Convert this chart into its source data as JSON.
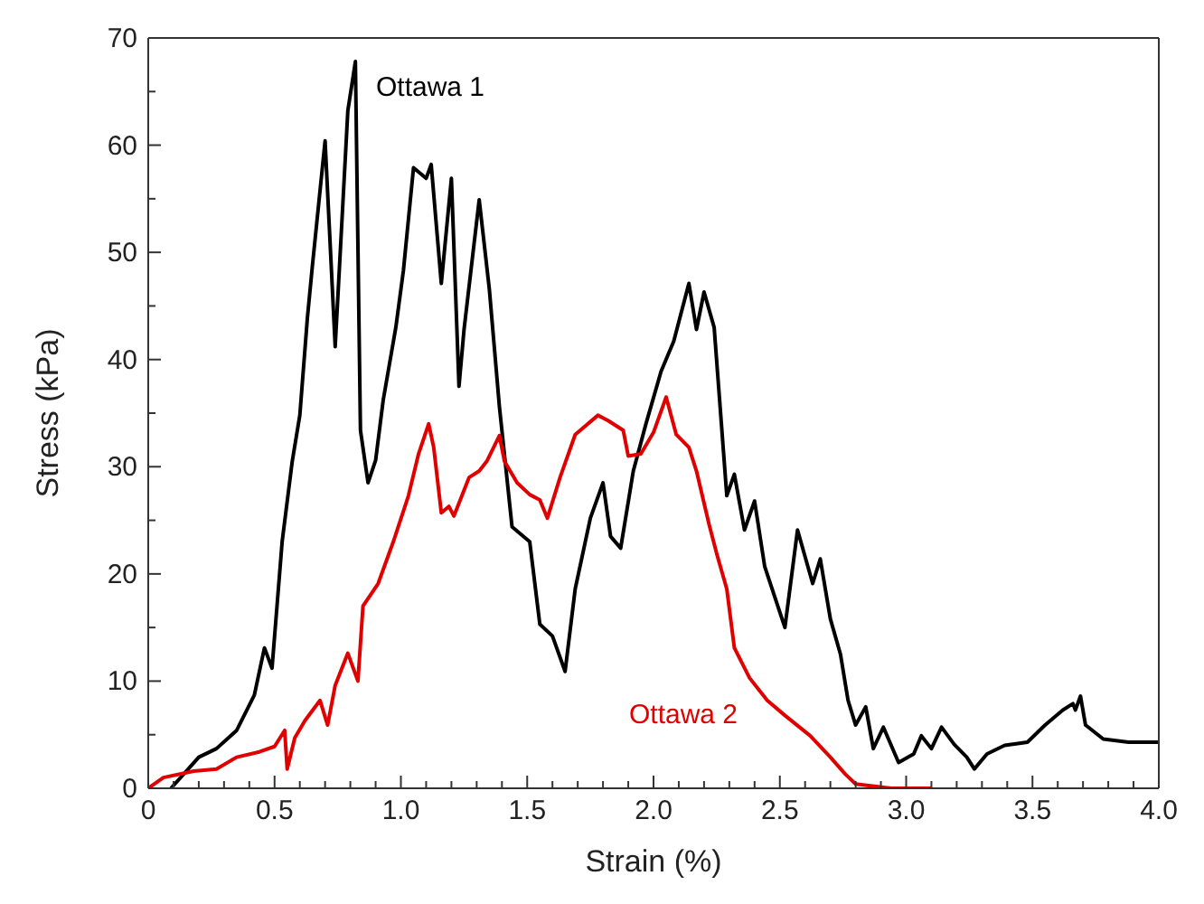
{
  "chart_data": {
    "type": "line",
    "xlabel": "Strain (%)",
    "ylabel": "Stress (kPa)",
    "xlim": [
      0,
      4
    ],
    "ylim": [
      0,
      70
    ],
    "xticks": [
      0,
      {
        "value": 0.1,
        "label": null
      },
      {
        "value": 0.2,
        "label": null
      },
      {
        "value": 0.3,
        "label": null
      },
      {
        "value": 0.4,
        "label": null
      },
      {
        "value": 0.5,
        "label": "0.5"
      },
      {
        "value": 0.6,
        "label": null
      },
      {
        "value": 0.7,
        "label": null
      },
      {
        "value": 0.8,
        "label": null
      },
      {
        "value": 0.9,
        "label": null
      },
      {
        "value": 1,
        "label": "1.0"
      },
      {
        "value": 1.1,
        "label": null
      },
      {
        "value": 1.2,
        "label": null
      },
      {
        "value": 1.3,
        "label": null
      },
      {
        "value": 1.4,
        "label": null
      },
      1.5,
      {
        "value": 1.6,
        "label": null
      },
      {
        "value": 1.7,
        "label": null
      },
      {
        "value": 1.8,
        "label": null
      },
      {
        "value": 1.9,
        "label": null
      },
      {
        "value": 2,
        "label": "2.0"
      },
      {
        "value": 2.1,
        "label": null
      },
      {
        "value": 2.2,
        "label": null
      },
      {
        "value": 2.3,
        "label": null
      },
      {
        "value": 2.4,
        "label": null
      },
      2.5,
      {
        "value": 2.6,
        "label": null
      },
      {
        "value": 2.7,
        "label": null
      },
      {
        "value": 2.8,
        "label": null
      },
      {
        "value": 2.9,
        "label": null
      },
      {
        "value": 3,
        "label": "3.0"
      },
      {
        "value": 3.1,
        "label": null
      },
      {
        "value": 3.2,
        "label": null
      },
      {
        "value": 3.3,
        "label": null
      },
      {
        "value": 3.4,
        "label": null
      },
      3.5,
      {
        "value": 3.6,
        "label": null
      },
      {
        "value": 3.7,
        "label": null
      },
      {
        "value": 3.8,
        "label": null
      },
      {
        "value": 3.9,
        "label": null
      },
      {
        "value": 4,
        "label": "4.0"
      }
    ],
    "yticks": [
      0,
      {
        "value": 5,
        "label": null
      },
      10,
      {
        "value": 15,
        "label": null
      },
      20,
      {
        "value": 25,
        "label": null
      },
      30,
      {
        "value": 35,
        "label": null
      },
      40,
      {
        "value": 45,
        "label": null
      },
      50,
      {
        "value": 55,
        "label": null
      },
      60,
      {
        "value": 65,
        "label": null
      },
      70
    ],
    "series": [
      {
        "name": "Ottawa 1",
        "color": "#000000",
        "x": [
          0.09,
          0.2,
          0.27,
          0.35,
          0.42,
          0.46,
          0.49,
          0.53,
          0.57,
          0.6,
          0.63,
          0.65,
          0.7,
          0.74,
          0.79,
          0.82,
          0.84,
          0.87,
          0.9,
          0.93,
          0.98,
          1.01,
          1.05,
          1.1,
          1.12,
          1.16,
          1.2,
          1.23,
          1.25,
          1.31,
          1.35,
          1.39,
          1.44,
          1.51,
          1.55,
          1.6,
          1.65,
          1.69,
          1.75,
          1.8,
          1.83,
          1.87,
          1.92,
          1.97,
          2.03,
          2.08,
          2.14,
          2.17,
          2.2,
          2.24,
          2.29,
          2.32,
          2.36,
          2.4,
          2.44,
          2.52,
          2.57,
          2.63,
          2.66,
          2.7,
          2.74,
          2.77,
          2.8,
          2.84,
          2.87,
          2.91,
          2.97,
          3.03,
          3.06,
          3.1,
          3.14,
          3.19,
          3.24,
          3.27,
          3.32,
          3.39,
          3.48,
          3.55,
          3.62,
          3.66,
          3.67,
          3.69,
          3.71,
          3.78,
          3.88,
          4.0
        ],
        "values": [
          0,
          2.9,
          3.7,
          5.4,
          8.7,
          13.1,
          11.2,
          23,
          30.5,
          34.8,
          43.9,
          48.8,
          60.4,
          41.2,
          63.2,
          67.8,
          33.4,
          28.5,
          30.6,
          36.2,
          43,
          48.3,
          57.9,
          56.9,
          58.2,
          47.1,
          56.9,
          37.5,
          42.8,
          54.9,
          46.6,
          35.6,
          24.4,
          23,
          15.3,
          14.2,
          10.9,
          18.6,
          25.2,
          28.5,
          23.5,
          22.4,
          29.6,
          34,
          38.9,
          41.7,
          47.1,
          42.8,
          46.3,
          43,
          27.3,
          29.3,
          24.1,
          26.8,
          20.7,
          15,
          24.1,
          19.1,
          21.4,
          15.8,
          12.5,
          8.2,
          5.9,
          7.6,
          3.7,
          5.7,
          2.4,
          3.2,
          4.9,
          3.7,
          5.7,
          4.1,
          2.9,
          1.8,
          3.2,
          4,
          4.3,
          5.9,
          7.3,
          7.9,
          7.3,
          8.6,
          5.9,
          4.6,
          4.3,
          4.3
        ]
      },
      {
        "name": "Ottawa 2",
        "color": "#e00000",
        "x": [
          0,
          0.06,
          0.18,
          0.27,
          0.35,
          0.44,
          0.5,
          0.54,
          0.55,
          0.58,
          0.62,
          0.68,
          0.71,
          0.74,
          0.79,
          0.83,
          0.85,
          0.91,
          0.97,
          1.03,
          1.07,
          1.11,
          1.13,
          1.16,
          1.19,
          1.21,
          1.27,
          1.31,
          1.34,
          1.39,
          1.41,
          1.46,
          1.51,
          1.55,
          1.58,
          1.63,
          1.69,
          1.78,
          1.82,
          1.88,
          1.9,
          1.95,
          2.0,
          2.05,
          2.09,
          2.14,
          2.17,
          2.22,
          2.25,
          2.29,
          2.32,
          2.38,
          2.45,
          2.52,
          2.62,
          2.7,
          2.76,
          2.8,
          2.94,
          3.1
        ],
        "values": [
          0,
          1,
          1.6,
          1.8,
          2.9,
          3.4,
          3.9,
          5.4,
          1.8,
          4.7,
          6.3,
          8.2,
          5.9,
          9.6,
          12.6,
          10,
          17,
          19.1,
          23,
          27.3,
          31.2,
          34,
          31.8,
          25.7,
          26.3,
          25.4,
          29,
          29.6,
          30.5,
          32.9,
          30.5,
          28.5,
          27.4,
          26.9,
          25.2,
          29,
          33,
          34.8,
          34.3,
          33.4,
          31,
          31.2,
          33.2,
          36.5,
          33,
          31.8,
          29.6,
          24.6,
          21.9,
          18.6,
          13.1,
          10.3,
          8.2,
          6.8,
          4.9,
          2.9,
          1.3,
          0.4,
          0,
          0
        ]
      }
    ]
  }
}
